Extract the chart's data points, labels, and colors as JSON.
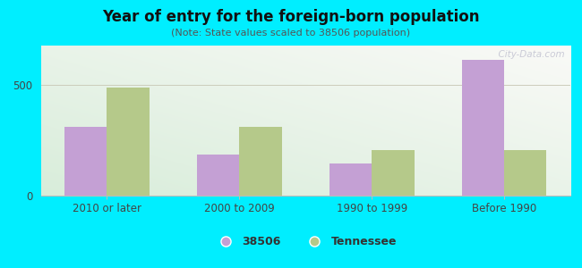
{
  "title": "Year of entry for the foreign-born population",
  "subtitle": "(Note: State values scaled to 38506 population)",
  "categories": [
    "2010 or later",
    "2000 to 2009",
    "1990 to 1999",
    "Before 1990"
  ],
  "values_38506": [
    310,
    185,
    145,
    615
  ],
  "values_tennessee": [
    490,
    310,
    205,
    205
  ],
  "color_38506": "#c4a0d4",
  "color_tennessee": "#b5c98a",
  "ylim": [
    0,
    680
  ],
  "yticks": [
    0,
    500
  ],
  "background_outer": "#00eeff",
  "legend_label_38506": "38506",
  "legend_label_tennessee": "Tennessee",
  "bar_width": 0.32,
  "watermark": "  City-Data.com"
}
